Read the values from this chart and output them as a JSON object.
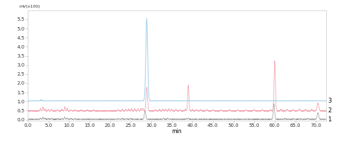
{
  "title": "mV(x100)",
  "xlabel": "min",
  "xlim": [
    0.0,
    72.5
  ],
  "ylim": [
    -0.05,
    6.0
  ],
  "yticks": [
    0.0,
    0.5,
    1.0,
    1.5,
    2.0,
    2.5,
    3.0,
    3.5,
    4.0,
    4.5,
    5.0,
    5.5
  ],
  "xticks": [
    0.0,
    5.0,
    10.0,
    15.0,
    20.0,
    25.0,
    30.0,
    35.0,
    40.0,
    45.0,
    50.0,
    55.0,
    60.0,
    65.0,
    70.0
  ],
  "xtick_labels": [
    "0.0",
    "5.0",
    "10.0",
    "15.0",
    "20.0",
    "25.0",
    "30.0",
    "35.0",
    "40.0",
    "45.0",
    "50.0",
    "55.0",
    "60.0",
    "65.0",
    "70.0"
  ],
  "colors": {
    "trace1": "#808080",
    "trace2": "#f090a0",
    "trace3": "#90c8e8"
  },
  "background": "#ffffff",
  "trace1_baseline": 0.02,
  "trace2_baseline": 0.48,
  "trace3_baseline": 1.03,
  "figsize": [
    5.0,
    2.12
  ],
  "dpi": 100
}
